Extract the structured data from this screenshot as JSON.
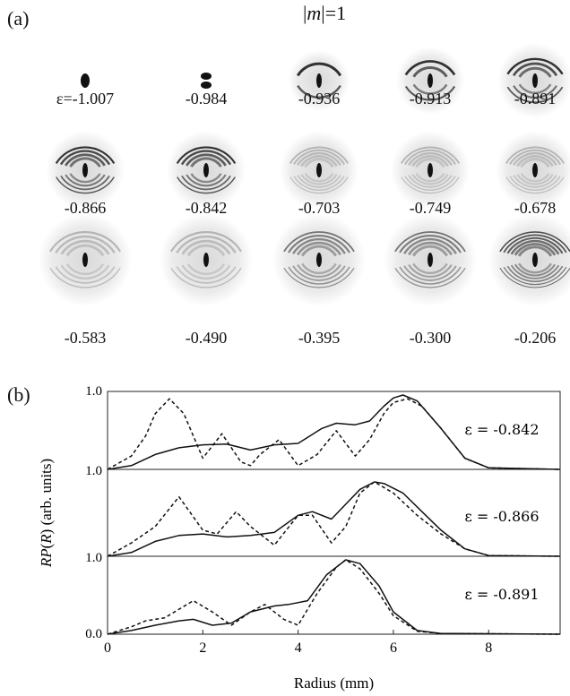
{
  "panel_a_label": "(a)",
  "panel_b_label": "(b)",
  "title": {
    "m": "m",
    "suffix": "=1",
    "bar": "|"
  },
  "images": [
    {
      "label": "ε=-1.007",
      "rings": 0,
      "style": "dot"
    },
    {
      "label": "-0.984",
      "rings": 0,
      "style": "double"
    },
    {
      "label": "-0.936",
      "rings": 1,
      "style": "arc"
    },
    {
      "label": "-0.913",
      "rings": 2,
      "style": "arc"
    },
    {
      "label": "-0.891",
      "rings": 3,
      "style": "arc"
    },
    {
      "label": "-0.866",
      "rings": 4,
      "style": "arc"
    },
    {
      "label": "-0.842",
      "rings": 4,
      "style": "arc"
    },
    {
      "label": "-0.703",
      "rings": 5,
      "style": "faint"
    },
    {
      "label": "-0.749",
      "rings": 5,
      "style": "faint"
    },
    {
      "label": "-0.678",
      "rings": 5,
      "style": "faint"
    },
    {
      "label": "-0.583",
      "rings": 4,
      "style": "faint"
    },
    {
      "label": "-0.490",
      "rings": 4,
      "style": "faint"
    },
    {
      "label": "-0.395",
      "rings": 5,
      "style": "medium"
    },
    {
      "label": "-0.300",
      "rings": 5,
      "style": "medium"
    },
    {
      "label": "-0.206",
      "rings": 6,
      "style": "strong"
    }
  ],
  "chart_data": {
    "type": "line",
    "xlabel": "Radius (mm)",
    "ylabel": "RP(R) (arb. units)",
    "ylabel_parts": {
      "a": "RP",
      "b": "(",
      "c": "R",
      "d": ") (arb. units)"
    },
    "xlim": [
      0,
      9.5
    ],
    "x_ticks": [
      "0",
      "2",
      "4",
      "6",
      "8"
    ],
    "y_tick_labels": [
      "1.0",
      "1.0",
      "1.0",
      "0.0"
    ],
    "panels": [
      {
        "annotation": "ε = -0.842",
        "series": [
          {
            "style": "solid",
            "x": [
              0,
              0.5,
              1.0,
              1.5,
              2.0,
              2.5,
              3.0,
              3.5,
              4.0,
              4.5,
              4.8,
              5.2,
              5.5,
              5.8,
              6.0,
              6.2,
              6.5,
              7.0,
              7.5,
              8.0,
              9.5
            ],
            "y": [
              0,
              0.05,
              0.2,
              0.29,
              0.33,
              0.34,
              0.26,
              0.33,
              0.35,
              0.55,
              0.62,
              0.6,
              0.65,
              0.85,
              0.96,
              1.0,
              0.92,
              0.55,
              0.15,
              0.02,
              0
            ]
          },
          {
            "style": "dashed",
            "x": [
              0,
              0.5,
              0.8,
              1.0,
              1.3,
              1.6,
              2.0,
              2.4,
              2.8,
              3.0,
              3.2,
              3.6,
              4.0,
              4.4,
              4.8,
              5.2,
              5.5,
              5.8,
              6.0,
              6.3,
              6.6,
              7.0,
              7.5,
              8.0,
              9.5
            ],
            "y": [
              0,
              0.18,
              0.45,
              0.75,
              0.95,
              0.75,
              0.15,
              0.48,
              0.1,
              0.05,
              0.2,
              0.4,
              0.05,
              0.2,
              0.52,
              0.18,
              0.4,
              0.75,
              0.9,
              0.95,
              0.85,
              0.55,
              0.15,
              0.02,
              0
            ]
          }
        ]
      },
      {
        "annotation": "ε = -0.866",
        "series": [
          {
            "style": "solid",
            "x": [
              0,
              0.5,
              1.0,
              1.5,
              2.0,
              2.5,
              3.0,
              3.5,
              4.0,
              4.3,
              4.7,
              5.0,
              5.3,
              5.6,
              5.8,
              6.2,
              6.6,
              7.0,
              7.5,
              8.0,
              9.5
            ],
            "y": [
              0,
              0.05,
              0.2,
              0.28,
              0.3,
              0.26,
              0.28,
              0.32,
              0.55,
              0.6,
              0.5,
              0.7,
              0.9,
              1.0,
              0.98,
              0.85,
              0.6,
              0.35,
              0.1,
              0.01,
              0
            ]
          },
          {
            "style": "dashed",
            "x": [
              0,
              0.5,
              1.0,
              1.5,
              2.0,
              2.3,
              2.7,
              3.0,
              3.5,
              4.0,
              4.3,
              4.7,
              5.0,
              5.3,
              5.6,
              6.0,
              6.5,
              7.0,
              7.5,
              8.0,
              9.5
            ],
            "y": [
              0,
              0.18,
              0.4,
              0.8,
              0.35,
              0.3,
              0.6,
              0.4,
              0.15,
              0.55,
              0.55,
              0.18,
              0.4,
              0.85,
              1.0,
              0.85,
              0.55,
              0.3,
              0.1,
              0.01,
              0
            ]
          }
        ]
      },
      {
        "annotation": "ε = -0.891",
        "series": [
          {
            "style": "solid",
            "x": [
              0,
              0.5,
              1.0,
              1.5,
              1.8,
              2.2,
              2.6,
              3.0,
              3.5,
              3.8,
              4.2,
              4.6,
              5.0,
              5.3,
              5.7,
              6.0,
              6.5,
              7.0,
              9.5
            ],
            "y": [
              0,
              0.05,
              0.12,
              0.18,
              0.2,
              0.12,
              0.15,
              0.3,
              0.38,
              0.4,
              0.45,
              0.8,
              1.0,
              0.95,
              0.65,
              0.3,
              0.05,
              0.01,
              0
            ]
          },
          {
            "style": "dashed",
            "x": [
              0,
              0.5,
              0.8,
              1.2,
              1.8,
              2.2,
              2.6,
              3.0,
              3.3,
              3.7,
              4.0,
              4.4,
              4.8,
              5.0,
              5.3,
              5.7,
              6.0,
              6.5,
              7.0,
              9.5
            ],
            "y": [
              0,
              0.1,
              0.18,
              0.22,
              0.45,
              0.3,
              0.12,
              0.3,
              0.4,
              0.2,
              0.12,
              0.55,
              0.9,
              1.0,
              0.88,
              0.55,
              0.25,
              0.04,
              0.01,
              0
            ]
          }
        ]
      }
    ]
  }
}
